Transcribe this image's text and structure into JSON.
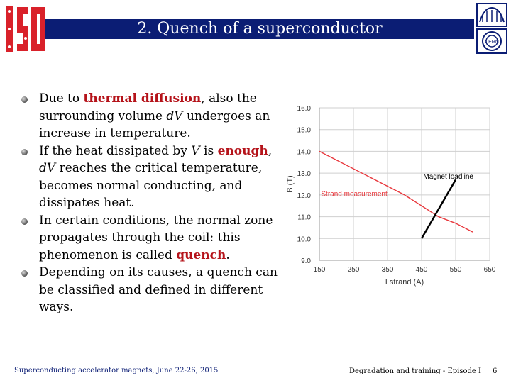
{
  "header": {
    "title": "2. Quench of a superconductor",
    "logo_left_text": "ISO",
    "logo_right_text": "CERN",
    "bar_color": "#0b1d74"
  },
  "content": {
    "bullets": [
      {
        "parts": [
          {
            "t": "Due to "
          },
          {
            "t": "thermal diffusion",
            "s": "hl"
          },
          {
            "t": ", also the surrounding volume "
          },
          {
            "t": "dV",
            "s": "it"
          },
          {
            "t": " undergoes an increase in temperature."
          }
        ]
      },
      {
        "parts": [
          {
            "t": "If the heat dissipated by "
          },
          {
            "t": "V",
            "s": "it"
          },
          {
            "t": " is "
          },
          {
            "t": "enough",
            "s": "hl"
          },
          {
            "t": ", "
          },
          {
            "t": "dV",
            "s": "it"
          },
          {
            "t": " reaches the critical temperature, becomes normal conducting, and dissipates heat."
          }
        ]
      },
      {
        "parts": [
          {
            "t": "In certain conditions, the normal zone propagates through the coil: this phenomenon is called "
          },
          {
            "t": "quench",
            "s": "hl"
          },
          {
            "t": "."
          }
        ]
      },
      {
        "parts": [
          {
            "t": "Depending on its causes, a quench can be classified and defined in different ways."
          }
        ]
      }
    ],
    "highlight_color": "#b5131a"
  },
  "chart_data": {
    "type": "line",
    "xlabel": "I strand (A)",
    "ylabel": "B (T)",
    "xlim": [
      150,
      650
    ],
    "ylim": [
      9.0,
      16.0
    ],
    "x_ticks": [
      150,
      250,
      350,
      450,
      550,
      650
    ],
    "y_ticks": [
      "9.0",
      "10.0",
      "11.0",
      "12.0",
      "13.0",
      "14.0",
      "15.0",
      "16.0"
    ],
    "grid": true,
    "series": [
      {
        "name": "Strand measurement",
        "color": "#e8373c",
        "x": [
          150,
          300,
          400,
          450,
          500,
          550,
          600
        ],
        "y": [
          14.0,
          12.8,
          12.0,
          11.5,
          11.0,
          10.7,
          10.3
        ]
      },
      {
        "name": "Magnet loadline",
        "color": "#000000",
        "x": [
          450,
          550
        ],
        "y": [
          10.0,
          12.7
        ]
      }
    ]
  },
  "footer": {
    "left": "Superconducting accelerator magnets, June 22-26, 2015",
    "middle": "Degradation and training - Episode I",
    "page": "6"
  }
}
